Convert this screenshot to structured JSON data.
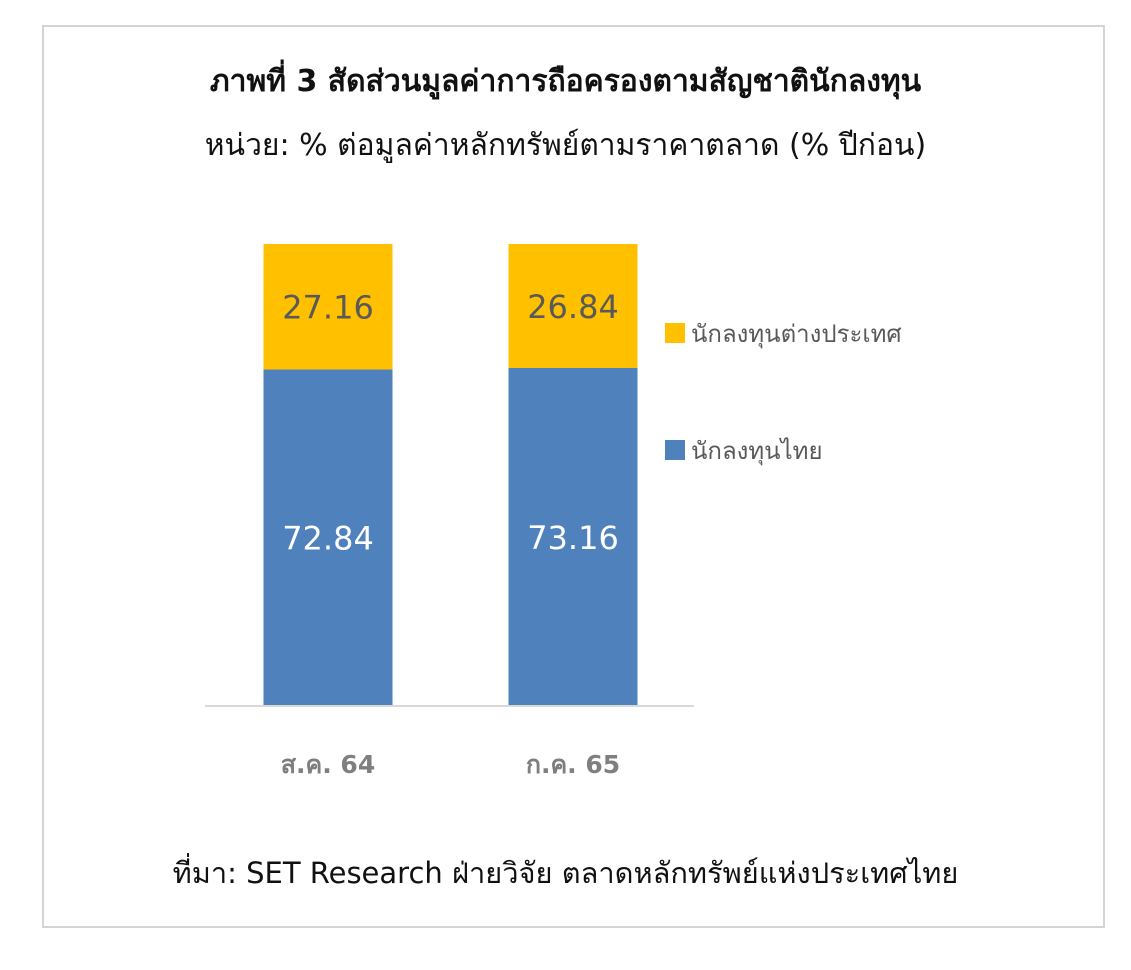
{
  "title": "ภาพที่ 3 สัดส่วนมูลค่าการถือครองตามสัญชาตินักลงทุน",
  "subtitle": "หน่วย: % ต่อมูลค่าหลักทรัพย์ตามราคาตลาด (% ปีก่อน)",
  "source": "ที่มา: SET Research ฝ่ายวิจัย ตลาดหลักทรัพย์แห่งประเทศไทย",
  "colors": {
    "thai": "#4f81bd",
    "foreign": "#ffc000",
    "thai_label": "#ffffff",
    "foreign_label": "#595959",
    "axis_text": "#7f7f7f",
    "axis_line": "#d9d9d9"
  },
  "chart_data": {
    "type": "bar",
    "stacked": true,
    "categories": [
      "ส.ค. 64",
      "ก.ค. 65"
    ],
    "series": [
      {
        "name": "นักลงทุนไทย",
        "values": [
          72.84,
          73.16
        ],
        "color": "#4f81bd"
      },
      {
        "name": "นักลงทุนต่างประเทศ",
        "values": [
          27.16,
          26.84
        ],
        "color": "#ffc000"
      }
    ],
    "ylim": [
      0,
      100
    ],
    "grid": false,
    "legend": "right"
  }
}
